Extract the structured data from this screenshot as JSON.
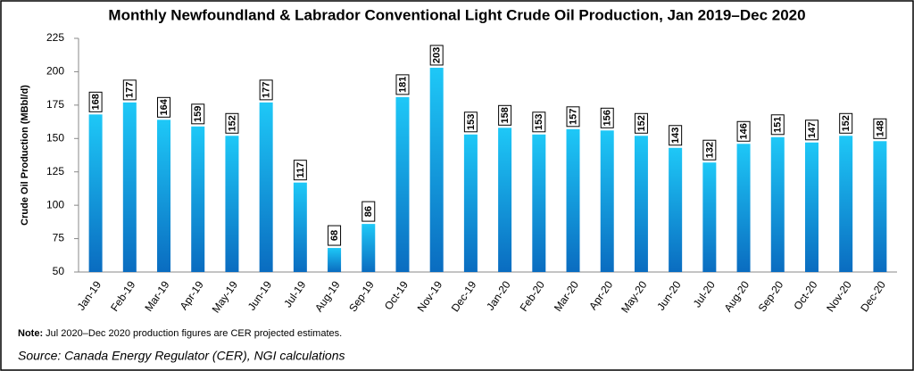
{
  "chart_data": {
    "type": "bar",
    "title": "Monthly Newfoundland & Labrador Conventional Light Crude Oil Production, Jan 2019–Dec 2020",
    "y_label": "Crude Oil Production (MBbl/d)",
    "categories": [
      "Jan-19",
      "Feb-19",
      "Mar-19",
      "Apr-19",
      "May-19",
      "Jun-19",
      "Jul-19",
      "Aug-19",
      "Sep-19",
      "Oct-19",
      "Nov-19",
      "Dec-19",
      "Jan-20",
      "Feb-20",
      "Mar-20",
      "Apr-20",
      "May-20",
      "Jun-20",
      "Jul-20",
      "Aug-20",
      "Sep-20",
      "Oct-20",
      "Nov-20",
      "Dec-20"
    ],
    "values": [
      168,
      177,
      164,
      159,
      152,
      177,
      117,
      68,
      86,
      181,
      203,
      153,
      158,
      153,
      157,
      156,
      152,
      143,
      132,
      146,
      151,
      147,
      152,
      148
    ],
    "colors": [
      "#1ec8f7",
      "#0a6cc0"
    ],
    "ylim": [
      50,
      225
    ],
    "yticks": [
      50,
      75,
      100,
      125,
      150,
      175,
      200,
      225
    ],
    "grid": false,
    "note_label": "Note:",
    "note_text": " Jul 2020–Dec 2020 production figures are CER projected estimates.",
    "source": "Source: Canada Energy Regulator (CER), NGI calculations"
  }
}
